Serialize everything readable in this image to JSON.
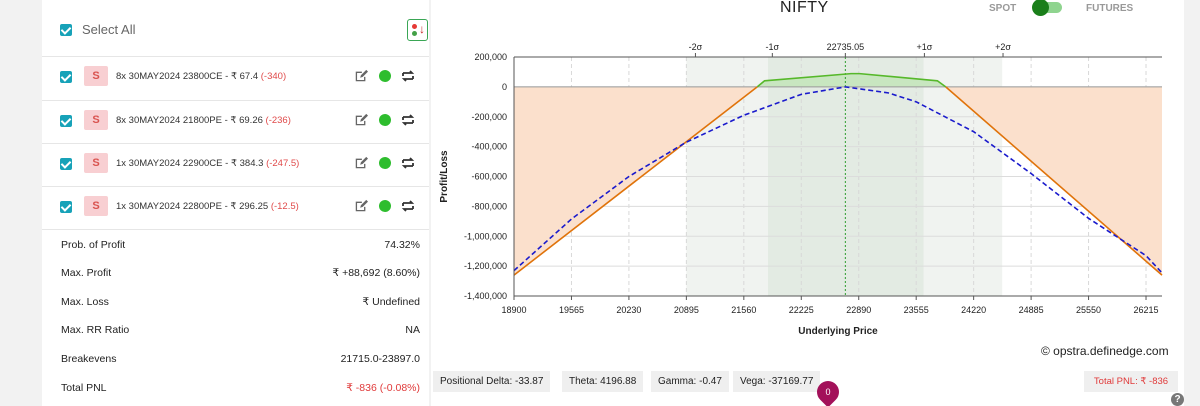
{
  "header": {
    "title": "NIFTY",
    "spot_label": "SPOT",
    "futures_label": "FUTURES"
  },
  "left": {
    "select_all": "Select All",
    "legs": [
      {
        "side": "S",
        "desc": "8x  30MAY2024  23800CE  - ₹ 67.4",
        "pnl": "(-340)"
      },
      {
        "side": "S",
        "desc": "8x  30MAY2024  21800PE  - ₹ 69.26",
        "pnl": "(-236)"
      },
      {
        "side": "S",
        "desc": "1x  30MAY2024  22900CE  - ₹ 384.3",
        "pnl": "(-247.5)"
      },
      {
        "side": "S",
        "desc": "1x  30MAY2024  22800PE  - ₹ 296.25",
        "pnl": "(-12.5)"
      }
    ],
    "stats": [
      {
        "label": "Prob. of Profit",
        "value": "74.32%"
      },
      {
        "label": "Max. Profit",
        "value": "₹ +88,692 (8.60%)"
      },
      {
        "label": "Max. Loss",
        "value": "₹ Undefined"
      },
      {
        "label": "Max. RR Ratio",
        "value": "NA"
      },
      {
        "label": "Breakevens",
        "value": "21715.0-23897.0"
      },
      {
        "label": "Total PNL",
        "value": "₹ -836 (-0.08%)"
      }
    ]
  },
  "greeks": {
    "delta": "Positional Delta: -33.87",
    "theta": "Theta: 4196.88",
    "gamma": "Gamma: -0.47",
    "vega": "Vega: -37169.77",
    "total_pnl": "Total PNL: ₹ -836"
  },
  "watermark": "© opstra.definedge.com",
  "pin_label": "0",
  "help_label": "?",
  "colors": {
    "accent_teal": "#17a2b8",
    "loss_fill": "#fbe0cc",
    "profit_fill": "#c8e6c0",
    "payoff_line": "#e0730a",
    "profit_line": "#56b82a",
    "target_line": "#1a1acc"
  },
  "chart_data": {
    "type": "line",
    "xlabel": "Underlying Price",
    "ylabel": "Profit/Loss",
    "x_ticks": [
      "18900",
      "19565",
      "20230",
      "20895",
      "21560",
      "22225",
      "22890",
      "23555",
      "24220",
      "24885",
      "25550",
      "26215"
    ],
    "y_ticks": [
      "200,000",
      "0",
      "-200,000",
      "-400,000",
      "-600,000",
      "-800,000",
      "-1,000,000",
      "-1,200,000",
      "-1,400,000"
    ],
    "xlim": [
      18900,
      26400
    ],
    "ylim": [
      -1400000,
      200000
    ],
    "sigma_labels": [
      {
        "label": "-2σ",
        "x": 21000
      },
      {
        "label": "-1σ",
        "x": 21890
      },
      {
        "label": "22735.05",
        "x": 22735.05
      },
      {
        "label": "+1σ",
        "x": 23650
      },
      {
        "label": "+2σ",
        "x": 24560
      }
    ],
    "sigma_bands": {
      "two_sigma": [
        20895,
        24550
      ],
      "one_sigma": [
        21840,
        23640
      ]
    },
    "spot": 22735.05,
    "series": [
      {
        "kind": "expiry",
        "x": [
          18900,
          21715,
          21800,
          22800,
          22900,
          23800,
          23897,
          26400
        ],
        "y": [
          -1260000,
          0,
          40800,
          88692,
          88692,
          40800,
          0,
          -1260000
        ]
      },
      {
        "kind": "target",
        "x": [
          18900,
          19565,
          20230,
          20895,
          21560,
          22225,
          22735,
          23230,
          23555,
          24220,
          24885,
          25550,
          26215,
          26400
        ],
        "y": [
          -1230000,
          -885000,
          -600000,
          -370000,
          -190000,
          -50000,
          0,
          -40000,
          -100000,
          -300000,
          -580000,
          -880000,
          -1130000,
          -1245000
        ]
      }
    ]
  }
}
